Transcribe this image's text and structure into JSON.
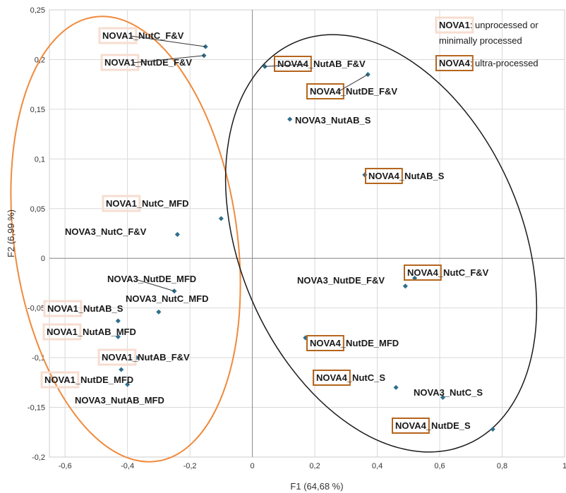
{
  "chart_data": {
    "type": "scatter",
    "xlabel": "F1 (64,68 %)",
    "ylabel": "F2 (6,99 %)",
    "xlim": [
      -0.65,
      1.0
    ],
    "ylim": [
      -0.2,
      0.25
    ],
    "x_ticks": [
      "-0,6",
      "-0,4",
      "-0,2",
      "0",
      "0,2",
      "0,4",
      "0,6",
      "0,8",
      "1"
    ],
    "y_ticks": [
      "0,25",
      "0,2",
      "0,15",
      "0,1",
      "0,05",
      "0",
      "-0,05",
      "-0,1",
      "-0,15",
      "-0,2"
    ],
    "marker_color": "#2e6e8e",
    "highlight_colors": {
      "NOVA1": "#f7ddd0",
      "NOVA4": "#b5651d"
    },
    "ellipse_colors": {
      "left": "#f08a3c",
      "right": "#1a1a1a"
    },
    "points": [
      {
        "x": -0.15,
        "y": 0.213,
        "nova": "NOVA1",
        "prefix": "NOVA1",
        "suffix": "_NutC_F&V"
      },
      {
        "x": -0.155,
        "y": 0.204,
        "nova": "NOVA1",
        "prefix": "NOVA1",
        "suffix": "_NutDE_F&V"
      },
      {
        "x": -0.1,
        "y": 0.04,
        "nova": "NOVA1",
        "prefix": "NOVA1",
        "suffix": "_NutC_MFD"
      },
      {
        "x": -0.24,
        "y": 0.024,
        "nova": "NOVA3",
        "prefix": "NOVA3",
        "suffix": "_NutC_F&V"
      },
      {
        "x": -0.25,
        "y": -0.033,
        "nova": "NOVA3",
        "prefix": "NOVA3",
        "suffix": "_NutDE_MFD"
      },
      {
        "x": -0.3,
        "y": -0.054,
        "nova": "NOVA3",
        "prefix": "NOVA3",
        "suffix": "_NutC_MFD"
      },
      {
        "x": -0.43,
        "y": -0.063,
        "nova": "NOVA1",
        "prefix": "NOVA1",
        "suffix": "_NutAB_S"
      },
      {
        "x": -0.43,
        "y": -0.079,
        "nova": "NOVA1",
        "prefix": "NOVA1",
        "suffix": "_NutAB_MFD"
      },
      {
        "x": -0.37,
        "y": -0.1,
        "nova": "NOVA1",
        "prefix": "NOVA1",
        "suffix": "_NutAB_F&V"
      },
      {
        "x": -0.42,
        "y": -0.112,
        "nova": "NOVA1",
        "prefix": "NOVA1",
        "suffix": "_NutDE_MFD"
      },
      {
        "x": -0.4,
        "y": -0.127,
        "nova": "NOVA3",
        "prefix": "NOVA3",
        "suffix": "_NutAB_MFD"
      },
      {
        "x": 0.04,
        "y": 0.193,
        "nova": "NOVA4",
        "prefix": "NOVA4",
        "suffix": "_NutAB_F&V"
      },
      {
        "x": 0.37,
        "y": 0.185,
        "nova": "NOVA4",
        "prefix": "NOVA4",
        "suffix": "_NutDE_F&V"
      },
      {
        "x": 0.12,
        "y": 0.14,
        "nova": "NOVA3",
        "prefix": "NOVA3",
        "suffix": "_NutAB_S"
      },
      {
        "x": 0.36,
        "y": 0.084,
        "nova": "NOVA4",
        "prefix": "NOVA4",
        "suffix": "_NutAB_S"
      },
      {
        "x": 0.52,
        "y": -0.02,
        "nova": "NOVA4",
        "prefix": "NOVA4",
        "suffix": "_NutC_F&V"
      },
      {
        "x": 0.49,
        "y": -0.028,
        "nova": "NOVA3",
        "prefix": "NOVA3",
        "suffix": "_NutDE_F&V"
      },
      {
        "x": 0.17,
        "y": -0.08,
        "nova": "NOVA4",
        "prefix": "NOVA4",
        "suffix": "_NutDE_MFD"
      },
      {
        "x": 0.46,
        "y": -0.13,
        "nova": "NOVA4",
        "prefix": "NOVA4",
        "suffix": "_NutC_S"
      },
      {
        "x": 0.61,
        "y": -0.14,
        "nova": "NOVA3",
        "prefix": "NOVA3",
        "suffix": "_NutC_S"
      },
      {
        "x": 0.77,
        "y": -0.172,
        "nova": "NOVA4",
        "prefix": "NOVA4",
        "suffix": "_NutDE_S"
      }
    ],
    "legend": [
      {
        "key": "NOVA1",
        "label_line1": ": unprocessed or",
        "label_line2": "minimally processed"
      },
      {
        "key": "NOVA4",
        "label_line1": ": ultra-processed",
        "label_line2": ""
      }
    ]
  }
}
